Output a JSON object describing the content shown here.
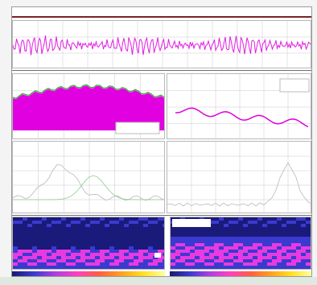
{
  "title_bar": {
    "text": "",
    "rule_color": "#7a2326"
  },
  "panels": {
    "waveform": {
      "label": "",
      "color": "#e01ee0"
    },
    "area_plot": {
      "label": "",
      "fill": "#e000e0",
      "line": "#33aa33"
    },
    "line_plot": {
      "label": "",
      "line": "#e000e0"
    },
    "sparse_left": {
      "label": ""
    },
    "sparse_right": {
      "label": ""
    },
    "spectro_left": {
      "label": ""
    },
    "spectro_right": {
      "label": ""
    }
  },
  "colors": {
    "grid": "#c8c8c8",
    "magenta": "#e000e0",
    "green": "#33aa33",
    "spectro_dark": "#1a1a7a",
    "spectro_mid": "#3a3ad0",
    "spectro_hot": "#e83ae0",
    "separator": "#6f6f6f",
    "bottom_strip": "#dfe9df"
  },
  "colorbar_stops": [
    "#1a1a6a",
    "#3a3ad0",
    "#b040e0",
    "#ff40c0",
    "#ff6040",
    "#ffa020",
    "#ffe020",
    "#ffffa0"
  ]
}
